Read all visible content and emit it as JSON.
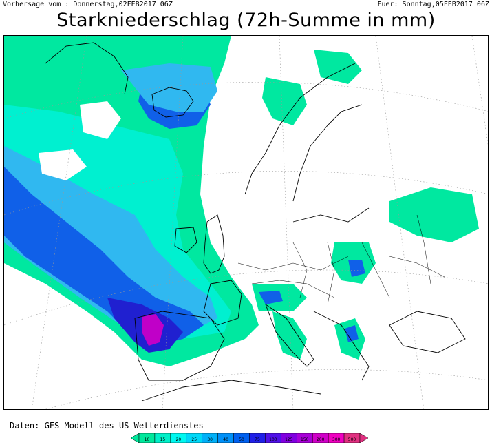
{
  "header": {
    "left": "Vorhersage vom : Donnerstag,02FEB2017 06Z",
    "right": "Fuer: Sonntag,05FEB2017 06Z",
    "title": "Starkniederschlag (72h-Summe in mm)"
  },
  "footer": {
    "source": "Daten: GFS-Modell des US-Wetterdienstes"
  },
  "legend": {
    "levels": [
      "10",
      "15",
      "20",
      "25",
      "30",
      "40",
      "50",
      "75",
      "100",
      "125",
      "150",
      "200",
      "300",
      "500"
    ],
    "colors": [
      "#00e89c",
      "#00f0c8",
      "#00f8f0",
      "#00d8f8",
      "#00b0f8",
      "#0090f8",
      "#0060f0",
      "#2020e8",
      "#5010e8",
      "#8000e0",
      "#a800d8",
      "#d000c8",
      "#f000c0",
      "#e03080"
    ]
  },
  "map": {
    "projection": "polar-stereographic",
    "region": "Europe / North Atlantic",
    "precip_colors": {
      "light": "#00e8a0",
      "light2": "#00f0d0",
      "moderate": "#30b8f0",
      "heavy": "#1060e8",
      "very_heavy": "#2020d0",
      "extreme": "#c000c8"
    }
  }
}
